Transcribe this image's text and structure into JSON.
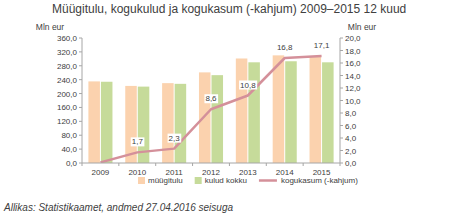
{
  "chart_data": {
    "type": "bar",
    "title": "Müügitulu, kogukulud ja kogukasum (-kahjum) 2009–2015 12 kuud",
    "ylabel": "Mln eur",
    "y2label": "Mln eur",
    "source": "Allikas: Statistikaamet, andmed 27.04.2016 seisuga",
    "categories": [
      "2009",
      "2010",
      "2011",
      "2012",
      "2013",
      "2014",
      "2015"
    ],
    "series": [
      {
        "name": "müügitulu",
        "type": "bar",
        "color": "#fbd2ae",
        "values": [
          235,
          222,
          230,
          261,
          301,
          310,
          307
        ]
      },
      {
        "name": "kulud kokku",
        "type": "bar",
        "color": "#c6db9a",
        "values": [
          234,
          220,
          228,
          253,
          290,
          293,
          290
        ]
      },
      {
        "name": "kogukasum (-kahjum)",
        "type": "line",
        "color": "#d4909a",
        "axis": "y2",
        "values": [
          0.1,
          1.7,
          2.3,
          8.6,
          10.8,
          16.8,
          17.1
        ],
        "value_labels": [
          null,
          "1,7",
          "2,3",
          "8,6",
          "10,8",
          "16,8",
          "17,1"
        ],
        "data_labels": true
      }
    ],
    "ylim": [
      0,
      360
    ],
    "yticks": [
      {
        "value": 0,
        "label": "0,0"
      },
      {
        "value": 40,
        "label": "40,0"
      },
      {
        "value": 80,
        "label": "80,0"
      },
      {
        "value": 120,
        "label": "120,0"
      },
      {
        "value": 160,
        "label": "160,0"
      },
      {
        "value": 200,
        "label": "200,0"
      },
      {
        "value": 240,
        "label": "240,0"
      },
      {
        "value": 280,
        "label": "280,0"
      },
      {
        "value": 320,
        "label": "320,0"
      },
      {
        "value": 360,
        "label": "360,0"
      }
    ],
    "y2lim": [
      0,
      20
    ],
    "y2ticks": [
      {
        "value": 0,
        "label": "0,0"
      },
      {
        "value": 2,
        "label": "2,0"
      },
      {
        "value": 4,
        "label": "4,0"
      },
      {
        "value": 6,
        "label": "6,0"
      },
      {
        "value": 8,
        "label": "8,0"
      },
      {
        "value": 10,
        "label": "10,0"
      },
      {
        "value": 12,
        "label": "12,0"
      },
      {
        "value": 14,
        "label": "14,0"
      },
      {
        "value": 16,
        "label": "16,0"
      },
      {
        "value": 18,
        "label": "18,0"
      },
      {
        "value": 20,
        "label": "20,0"
      }
    ],
    "grid": false,
    "legend": "bottom"
  }
}
